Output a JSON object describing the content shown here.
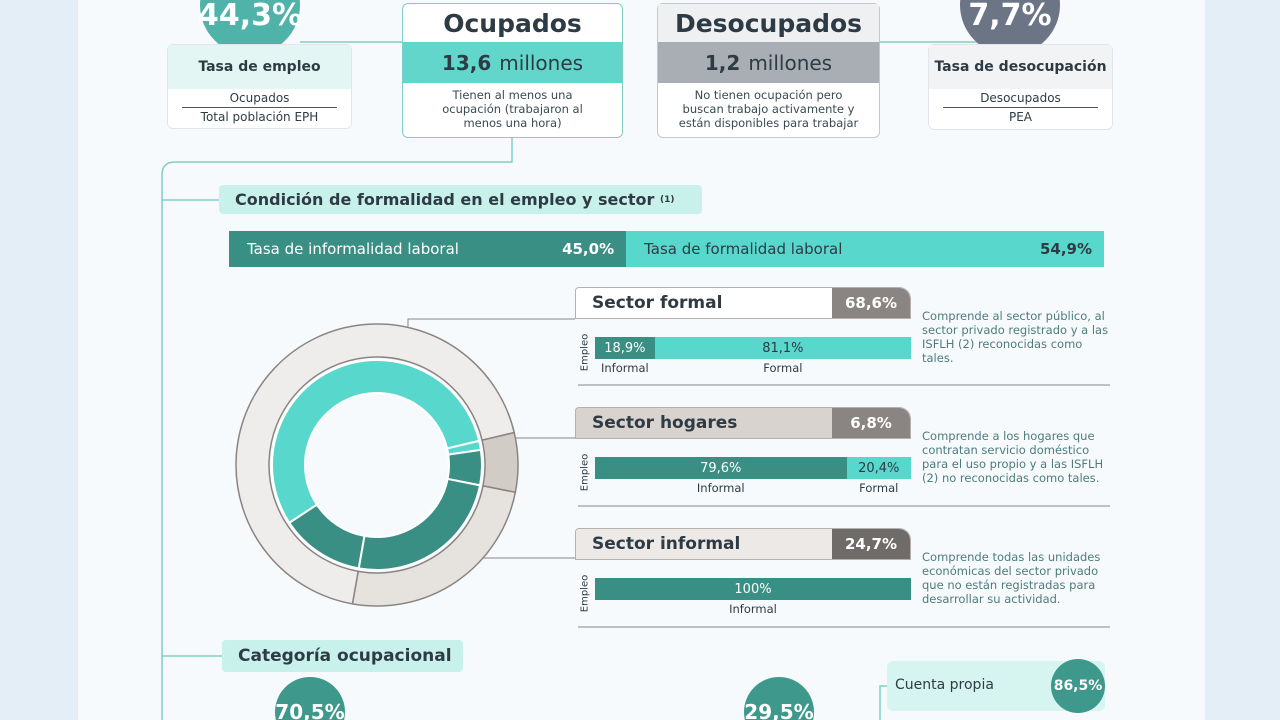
{
  "top": {
    "employment_rate": {
      "value": 44.3,
      "label": "44,3%",
      "title": "Tasa de empleo",
      "numerator": "Ocupados",
      "denominator": "Total población EPH"
    },
    "employed": {
      "title": "Ocupados",
      "value": 13.6,
      "label": "13,6",
      "unit": "millones",
      "description": "Tienen al menos una ocupación (trabajaron al menos una hora)"
    },
    "unemployed": {
      "title": "Desocupados",
      "value": 1.2,
      "label": "1,2",
      "unit": "millones",
      "description": "No tienen ocupación pero buscan trabajo activamente y están disponibles para trabajar"
    },
    "unemployment_rate": {
      "value": 7.7,
      "label": "7,7%",
      "title": "Tasa de desocupación",
      "numerator": "Desocupados",
      "denominator": "PEA"
    }
  },
  "formality": {
    "title": "Condición de formalidad en el empleo y sector",
    "note": "(1)",
    "rates": [
      {
        "name": "Tasa de informalidad laboral",
        "value": 45.0,
        "label": "45,0%"
      },
      {
        "name": "Tasa de formalidad laboral",
        "value": 54.9,
        "label": "54,9%"
      }
    ]
  },
  "sectors": [
    {
      "name": "Sector formal",
      "value": 68.6,
      "label": "68,6%",
      "axis_label": "Empleo",
      "description": "Comprende al sector público, al sector privado registrado y a las ISFLH (2) reconocidas como tales.",
      "split": [
        {
          "name": "Informal",
          "value": 18.9,
          "label": "18,9%"
        },
        {
          "name": "Formal",
          "value": 81.1,
          "label": "81,1%"
        }
      ]
    },
    {
      "name": "Sector hogares",
      "value": 6.8,
      "label": "6,8%",
      "axis_label": "Empleo",
      "description": "Comprende a los hogares que contratan servicio doméstico para el uso propio y a las ISFLH (2) no reconocidas como tales.",
      "split": [
        {
          "name": "Informal",
          "value": 79.6,
          "label": "79,6%"
        },
        {
          "name": "Formal",
          "value": 20.4,
          "label": "20,4%"
        }
      ]
    },
    {
      "name": "Sector informal",
      "value": 24.7,
      "label": "24,7%",
      "axis_label": "Empleo",
      "description": "Comprende todas las unidades económicas del sector privado que no están registradas para desarrollar su actividad.",
      "split": [
        {
          "name": "Informal",
          "value": 100,
          "label": "100%"
        }
      ]
    }
  ],
  "occupational": {
    "title": "Categoría ocupacional",
    "items": [
      {
        "value": 70.5,
        "label": "70,5%"
      },
      {
        "value": 29.5,
        "label": "29,5%"
      }
    ],
    "self_employed": {
      "name": "Cuenta propia",
      "value": 86.5,
      "label": "86,5%"
    }
  }
}
